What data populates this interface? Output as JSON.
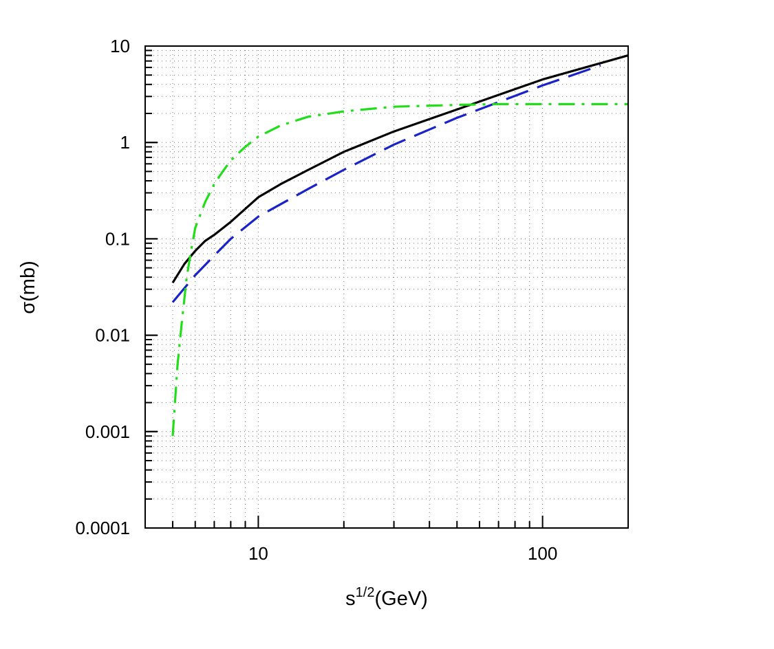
{
  "chart_data": {
    "type": "line",
    "title": "",
    "xlabel": {
      "base": "s",
      "sup": "1/2",
      "rest": "(GeV)"
    },
    "ylabel": "σ(mb)",
    "xscale": "log",
    "yscale": "log",
    "xlim": [
      4,
      200
    ],
    "ylim": [
      0.0001,
      10
    ],
    "x_ticks": [
      {
        "value": 10,
        "label": "10"
      },
      {
        "value": 100,
        "label": "100"
      }
    ],
    "y_ticks": [
      {
        "value": 10,
        "label": "10"
      },
      {
        "value": 1,
        "label": "1"
      },
      {
        "value": 0.1,
        "label": "0.1"
      },
      {
        "value": 0.01,
        "label": "0.01"
      },
      {
        "value": 0.001,
        "label": "0.001"
      },
      {
        "value": 0.0001,
        "label": "0.0001"
      }
    ],
    "grid": "dotted",
    "series": [
      {
        "color": "#000000",
        "dash": "solid",
        "x": [
          5,
          5.5,
          6,
          6.5,
          7,
          8,
          10,
          12,
          15,
          20,
          30,
          50,
          100,
          150,
          200
        ],
        "y": [
          0.035,
          0.055,
          0.075,
          0.095,
          0.11,
          0.15,
          0.27,
          0.37,
          0.52,
          0.8,
          1.3,
          2.2,
          4.5,
          6.3,
          8.0
        ]
      },
      {
        "color": "#1a23c8",
        "dash": "long-dash",
        "x": [
          5,
          6,
          7,
          8,
          10,
          15,
          20,
          30,
          50,
          100,
          160
        ],
        "y": [
          0.022,
          0.042,
          0.067,
          0.1,
          0.17,
          0.33,
          0.52,
          0.95,
          1.8,
          3.9,
          6.3
        ]
      },
      {
        "color": "#22dd1a",
        "dash": "dash-dot",
        "x": [
          5,
          5.2,
          5.4,
          5.6,
          5.8,
          6,
          6.5,
          7,
          7.5,
          8,
          9,
          10,
          12,
          15,
          20,
          30,
          50,
          70,
          100,
          200
        ],
        "y": [
          0.0009,
          0.005,
          0.015,
          0.04,
          0.075,
          0.13,
          0.24,
          0.37,
          0.5,
          0.65,
          0.9,
          1.15,
          1.5,
          1.85,
          2.1,
          2.35,
          2.45,
          2.5,
          2.5,
          2.5
        ]
      }
    ]
  }
}
